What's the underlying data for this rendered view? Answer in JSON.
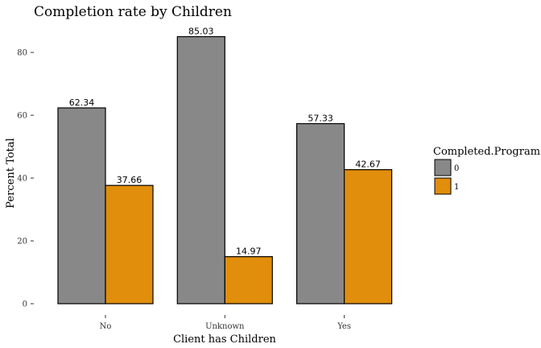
{
  "chart_data": {
    "type": "bar",
    "title": "Completion rate by Children",
    "xlabel": "Client has Children",
    "ylabel": "Percent Total",
    "categories": [
      "No",
      "Unknown",
      "Yes"
    ],
    "series": [
      {
        "name": "0",
        "values": [
          62.34,
          85.03,
          57.33
        ],
        "color": "#888888"
      },
      {
        "name": "1",
        "values": [
          37.66,
          14.97,
          42.67
        ],
        "color": "#E08E0B"
      }
    ],
    "yticks": [
      0,
      20,
      40,
      60,
      80
    ],
    "ylim": [
      0,
      89
    ],
    "grid": false,
    "legend": {
      "title": "Completed.Program",
      "position": "right"
    }
  }
}
